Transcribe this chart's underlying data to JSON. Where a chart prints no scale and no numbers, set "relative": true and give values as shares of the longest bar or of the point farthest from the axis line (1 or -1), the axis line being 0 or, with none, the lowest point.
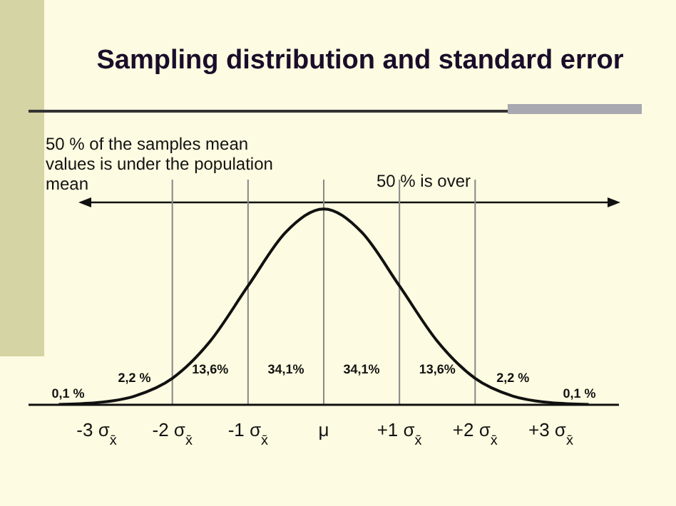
{
  "chart_data": {
    "type": "line",
    "title": "Sampling distribution and standard error",
    "relative": true,
    "x": [
      -3.5,
      -3,
      -2.5,
      -2,
      -1.5,
      -1,
      -0.5,
      0,
      0.5,
      1,
      1.5,
      2,
      2.5,
      3,
      3.5
    ],
    "series": [
      {
        "color": "#111111",
        "values": [
          0.0022,
          0.011,
          0.044,
          0.135,
          0.325,
          0.607,
          0.882,
          1,
          0.882,
          0.607,
          0.325,
          0.135,
          0.044,
          0.011,
          0.0022
        ]
      }
    ],
    "xlim": [
      -3.9,
      3.9
    ],
    "xticks": [
      {
        "value": -3,
        "label": "-3 σ$_{x̄}$"
      },
      {
        "value": -2,
        "label": "-2 σ$_{x̄}$"
      },
      {
        "value": -1,
        "label": "-1 σ$_{x̄}$"
      },
      {
        "value": 0,
        "label": "μ"
      },
      {
        "value": 1,
        "label": "+1 σ$_{x̄}$"
      },
      {
        "value": 2,
        "label": "+2 σ$_{x̄}$"
      },
      {
        "value": 3,
        "label": "+3 σ$_{x̄}$"
      }
    ],
    "ref_lines": [
      {
        "axis": "x",
        "value": -2,
        "color": "#888888"
      },
      {
        "axis": "x",
        "value": -1,
        "color": "#888888"
      },
      {
        "axis": "x",
        "value": 0,
        "color": "#888888"
      },
      {
        "axis": "x",
        "value": 1,
        "color": "#888888"
      },
      {
        "axis": "x",
        "value": 2,
        "color": "#888888"
      }
    ],
    "annotations": [
      "50 % of the samples mean values is under the population mean",
      "50 % is over",
      "0,1 %",
      "2,2 %",
      "13,6%",
      "34,1%",
      "34,1%",
      "13,6%",
      "2,2 %",
      "0,1 %"
    ],
    "marker": "none",
    "line_style": "solid"
  }
}
